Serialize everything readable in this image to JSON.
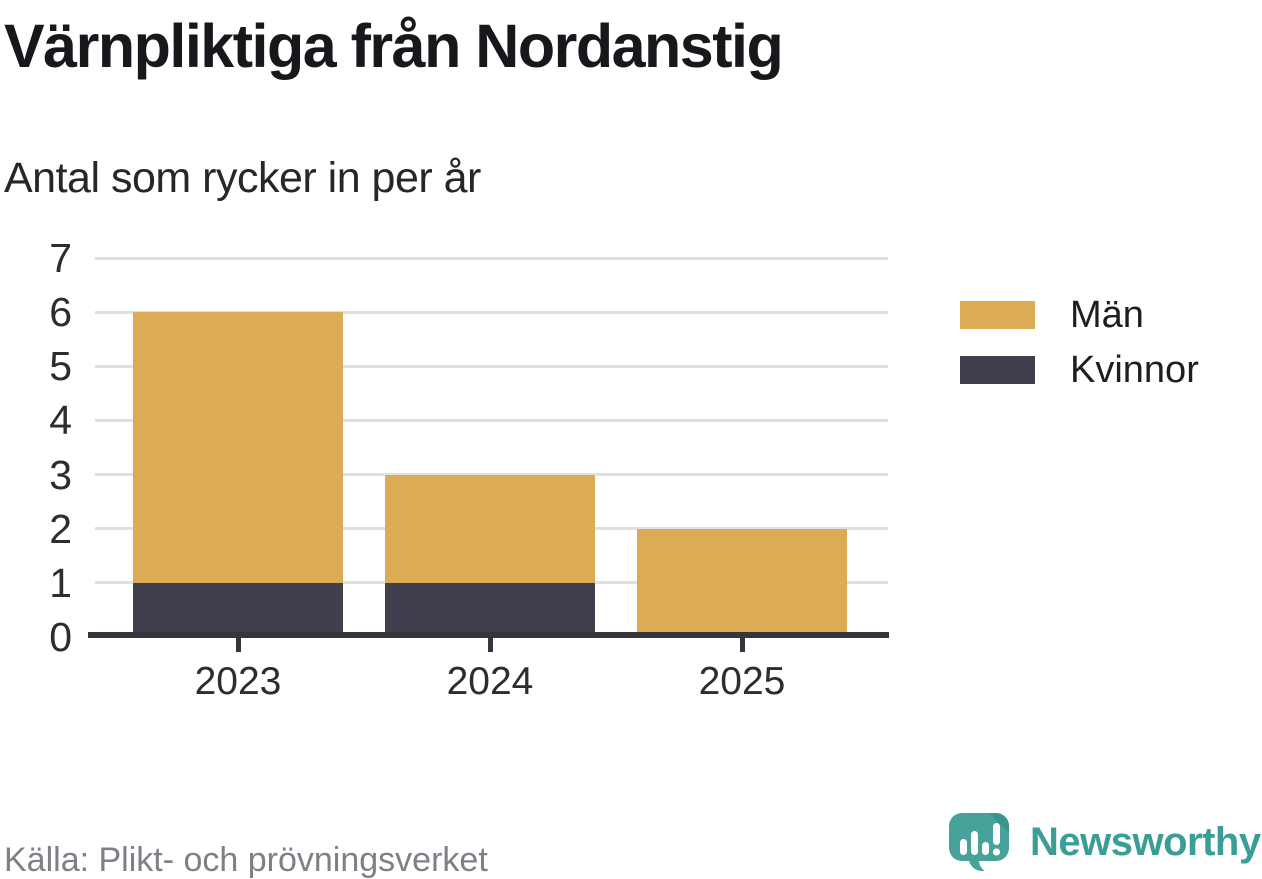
{
  "chart_data": {
    "type": "bar",
    "stacked": true,
    "title": "Värnpliktiga från Nordanstig",
    "subtitle": "Antal som rycker in per år",
    "categories": [
      "2023",
      "2024",
      "2025"
    ],
    "series": [
      {
        "name": "Män",
        "color": "#dbab55",
        "values": [
          5,
          2,
          2
        ]
      },
      {
        "name": "Kvinnor",
        "color": "#413e4e",
        "values": [
          1,
          1,
          0
        ]
      }
    ],
    "totals": [
      6,
      3,
      2
    ],
    "stack_bottom_to_top": [
      "Kvinnor",
      "Män"
    ],
    "ylim": [
      0,
      7
    ],
    "yticks": [
      0,
      1,
      2,
      3,
      4,
      5,
      6,
      7
    ],
    "grid": true,
    "legend_position": "right",
    "xlabel": "",
    "ylabel": "",
    "source": "Källa: Plikt- och prövningsverket"
  },
  "brand": {
    "name": "Newsworthy",
    "color": "#3b9e96"
  },
  "colors": {
    "background": "#ffffff",
    "title_text": "#17171c",
    "subtitle_text": "#26262b",
    "tick_text": "#2c2c31",
    "grid": "#e0e0e1",
    "axis": "#37343e",
    "source_text": "#7f7f88",
    "men_gold": "#dbab55",
    "women_dark": "#413e4e",
    "brand_teal": "#3b9e96"
  }
}
